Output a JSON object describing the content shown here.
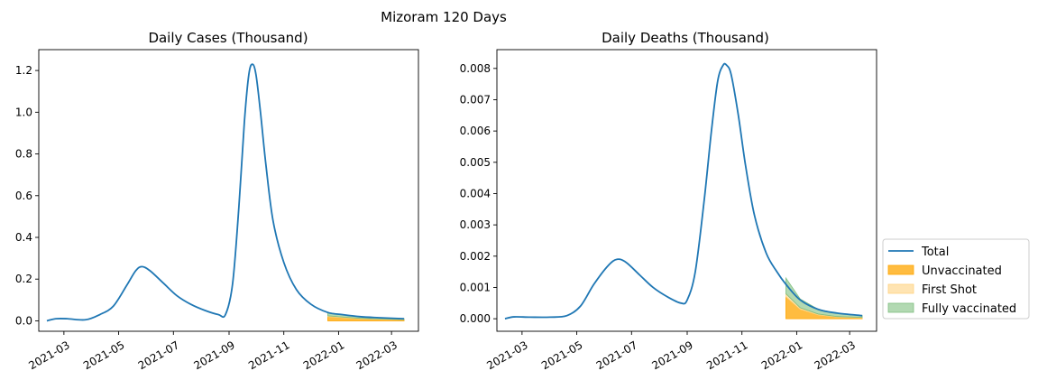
{
  "figure": {
    "title": "Mizoram 120 Days"
  },
  "colors": {
    "total": "#1f77b4",
    "unvaccinated": "#ffa500",
    "first_shot": "#ffd27f",
    "fully_vaccinated": "#7fbf7f"
  },
  "chart_data": [
    {
      "type": "line",
      "title": "Daily Cases (Thousand)",
      "x_axis": {
        "type": "date",
        "ticks": [
          "2021-03",
          "2021-05",
          "2021-07",
          "2021-09",
          "2021-11",
          "2022-01",
          "2022-03"
        ]
      },
      "ylim": [
        -0.05,
        1.3
      ],
      "y_ticks": [
        "0.0",
        "0.2",
        "0.4",
        "0.6",
        "0.8",
        "1.0",
        "1.2"
      ],
      "y_tick_values": [
        0,
        0.2,
        0.4,
        0.6,
        0.8,
        1.0,
        1.2
      ],
      "series": [
        {
          "name": "Total",
          "x": [
            "2021-02-10",
            "2021-02-20",
            "2021-03-05",
            "2021-03-25",
            "2021-04-10",
            "2021-04-25",
            "2021-05-10",
            "2021-05-20",
            "2021-05-27",
            "2021-06-05",
            "2021-06-20",
            "2021-07-05",
            "2021-07-20",
            "2021-08-05",
            "2021-08-20",
            "2021-08-28",
            "2021-09-05",
            "2021-09-12",
            "2021-09-18",
            "2021-09-23",
            "2021-09-27",
            "2021-10-01",
            "2021-10-06",
            "2021-10-12",
            "2021-10-20",
            "2021-11-01",
            "2021-11-15",
            "2021-12-01",
            "2021-12-20",
            "2022-01-05",
            "2022-01-25",
            "2022-02-15",
            "2022-03-15"
          ],
          "values": [
            0.0,
            0.01,
            0.01,
            0.005,
            0.03,
            0.07,
            0.17,
            0.24,
            0.26,
            0.24,
            0.18,
            0.12,
            0.08,
            0.05,
            0.03,
            0.03,
            0.18,
            0.55,
            0.95,
            1.18,
            1.23,
            1.18,
            1.0,
            0.75,
            0.48,
            0.28,
            0.15,
            0.08,
            0.04,
            0.03,
            0.02,
            0.015,
            0.01
          ]
        },
        {
          "name": "Unvaccinated",
          "x": [
            "2021-12-20",
            "2022-01-05",
            "2022-01-25",
            "2022-02-15",
            "2022-03-15"
          ],
          "values": [
            0.02,
            0.015,
            0.01,
            0.007,
            0.005
          ]
        },
        {
          "name": "First Shot",
          "x": [
            "2021-12-20",
            "2022-01-05",
            "2022-01-25",
            "2022-02-15",
            "2022-03-15"
          ],
          "values": [
            0.004,
            0.003,
            0.002,
            0.002,
            0.001
          ]
        },
        {
          "name": "Fully vaccinated",
          "x": [
            "2021-12-20",
            "2022-01-05",
            "2022-01-25",
            "2022-02-15",
            "2022-03-15"
          ],
          "values": [
            0.016,
            0.012,
            0.008,
            0.006,
            0.004
          ]
        }
      ]
    },
    {
      "type": "line",
      "title": "Daily Deaths (Thousand)",
      "x_axis": {
        "type": "date",
        "ticks": [
          "2021-03",
          "2021-05",
          "2021-07",
          "2021-09",
          "2021-11",
          "2022-01",
          "2022-03"
        ]
      },
      "ylim": [
        -0.0004,
        0.0086
      ],
      "y_ticks": [
        "0.000",
        "0.001",
        "0.002",
        "0.003",
        "0.004",
        "0.005",
        "0.006",
        "0.007",
        "0.008"
      ],
      "y_tick_values": [
        0,
        0.001,
        0.002,
        0.003,
        0.004,
        0.005,
        0.006,
        0.007,
        0.008
      ],
      "series": [
        {
          "name": "Total",
          "x": [
            "2021-02-10",
            "2021-02-20",
            "2021-03-10",
            "2021-04-01",
            "2021-04-20",
            "2021-05-05",
            "2021-05-20",
            "2021-06-05",
            "2021-06-15",
            "2021-06-25",
            "2021-07-10",
            "2021-07-25",
            "2021-08-10",
            "2021-08-25",
            "2021-09-01",
            "2021-09-10",
            "2021-09-20",
            "2021-09-28",
            "2021-10-05",
            "2021-10-11",
            "2021-10-15",
            "2021-10-20",
            "2021-10-28",
            "2021-11-05",
            "2021-11-15",
            "2021-11-28",
            "2021-12-10",
            "2021-12-20",
            "2022-01-05",
            "2022-01-25",
            "2022-02-15",
            "2022-03-15"
          ],
          "values": [
            0.0,
            6e-05,
            5e-05,
            5e-05,
            0.0001,
            0.0004,
            0.0011,
            0.0017,
            0.0019,
            0.0018,
            0.0014,
            0.001,
            0.0007,
            0.0005,
            0.0006,
            0.0015,
            0.0038,
            0.006,
            0.0076,
            0.0081,
            0.0081,
            0.0078,
            0.0065,
            0.0049,
            0.0033,
            0.0021,
            0.0015,
            0.0011,
            0.0006,
            0.0003,
            0.00018,
            0.0001
          ]
        },
        {
          "name": "Unvaccinated",
          "x": [
            "2021-12-20",
            "2022-01-05",
            "2022-01-25",
            "2022-02-15",
            "2022-03-15"
          ],
          "values": [
            0.0007,
            0.0003,
            0.00012,
            5e-05,
            3e-05
          ]
        },
        {
          "name": "First Shot",
          "x": [
            "2021-12-20",
            "2022-01-05",
            "2022-01-25",
            "2022-02-15",
            "2022-03-15"
          ],
          "values": [
            0.0001,
            5e-05,
            3e-05,
            2e-05,
            1e-05
          ]
        },
        {
          "name": "Fully vaccinated",
          "x": [
            "2021-12-20",
            "2022-01-05",
            "2022-01-25",
            "2022-02-15",
            "2022-03-15"
          ],
          "values": [
            0.0005,
            0.00028,
            0.00015,
            0.00011,
            6e-05
          ]
        }
      ]
    }
  ],
  "legend": {
    "placement": "outside-right",
    "entries": [
      {
        "label": "Total",
        "kind": "line",
        "color_key": "total"
      },
      {
        "label": "Unvaccinated",
        "kind": "patch",
        "color_key": "unvaccinated"
      },
      {
        "label": "First Shot",
        "kind": "patch",
        "color_key": "first_shot"
      },
      {
        "label": "Fully vaccinated",
        "kind": "patch",
        "color_key": "fully_vaccinated"
      }
    ]
  }
}
